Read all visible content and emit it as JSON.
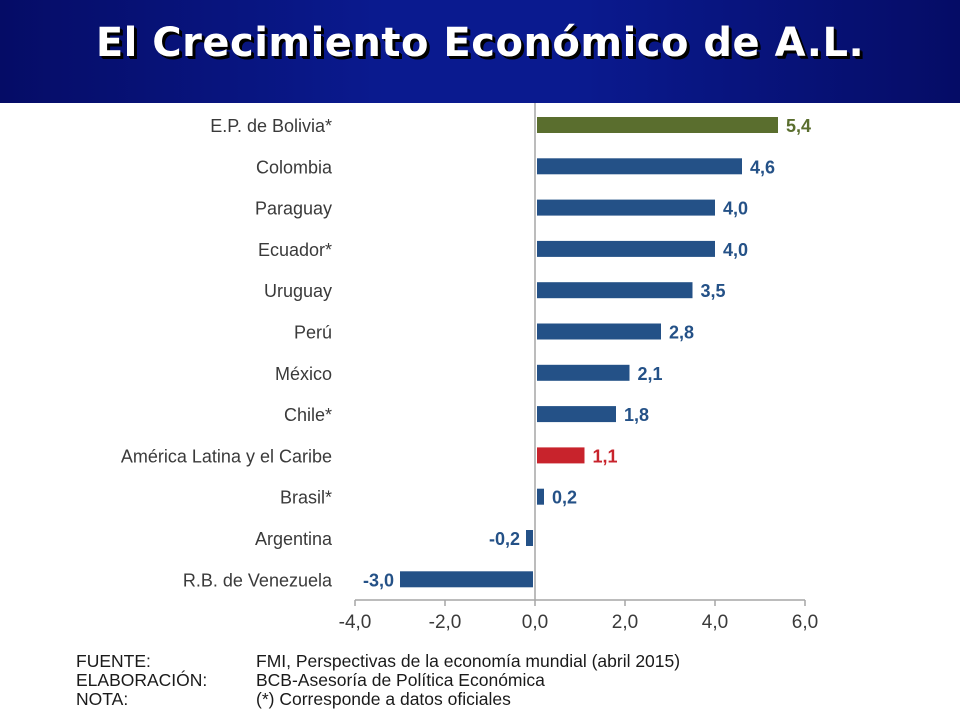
{
  "slide": {
    "title": "El Crecimiento Económico de A.L."
  },
  "colors": {
    "banner": "#0a1a8f",
    "default_bar": "#245187",
    "highlight_bar": "#5a6e2e",
    "region_bar": "#c8232c",
    "default_label": "#245187",
    "highlight_label": "#5a6e2e",
    "region_label": "#c8232c"
  },
  "chart_data": {
    "type": "bar",
    "orientation": "horizontal",
    "categories": [
      "E.P. de Bolivia*",
      "Colombia",
      "Paraguay",
      "Ecuador*",
      "Uruguay",
      "Perú",
      "México",
      "Chile*",
      "América Latina y el Caribe",
      "Brasil*",
      "Argentina",
      "R.B. de Venezuela"
    ],
    "values": [
      5.4,
      4.6,
      4.0,
      4.0,
      3.5,
      2.8,
      2.1,
      1.8,
      1.1,
      0.2,
      -0.2,
      -3.0
    ],
    "value_labels": [
      "5,4",
      "4,6",
      "4,0",
      "4,0",
      "3,5",
      "2,8",
      "2,1",
      "1,8",
      "1,1",
      "0,2",
      "-0,2",
      "-3,0"
    ],
    "bar_color_keys": [
      "highlight",
      "default",
      "default",
      "default",
      "default",
      "default",
      "default",
      "default",
      "region",
      "default",
      "default",
      "default"
    ],
    "xlim": [
      -4.0,
      6.0
    ],
    "xticks": [
      -4.0,
      -2.0,
      0.0,
      2.0,
      4.0,
      6.0
    ],
    "xtick_labels": [
      "-4,0",
      "-2,0",
      "0,0",
      "2,0",
      "4,0",
      "6,0"
    ],
    "grid": false
  },
  "notes": [
    {
      "label": "FUENTE:",
      "text": "FMI, Perspectivas de la economía mundial (abril 2015)"
    },
    {
      "label": "ELABORACIÓN:",
      "text": "BCB-Asesoría de Política Económica"
    },
    {
      "label": "NOTA:",
      "text": "(*) Corresponde a datos oficiales"
    }
  ]
}
